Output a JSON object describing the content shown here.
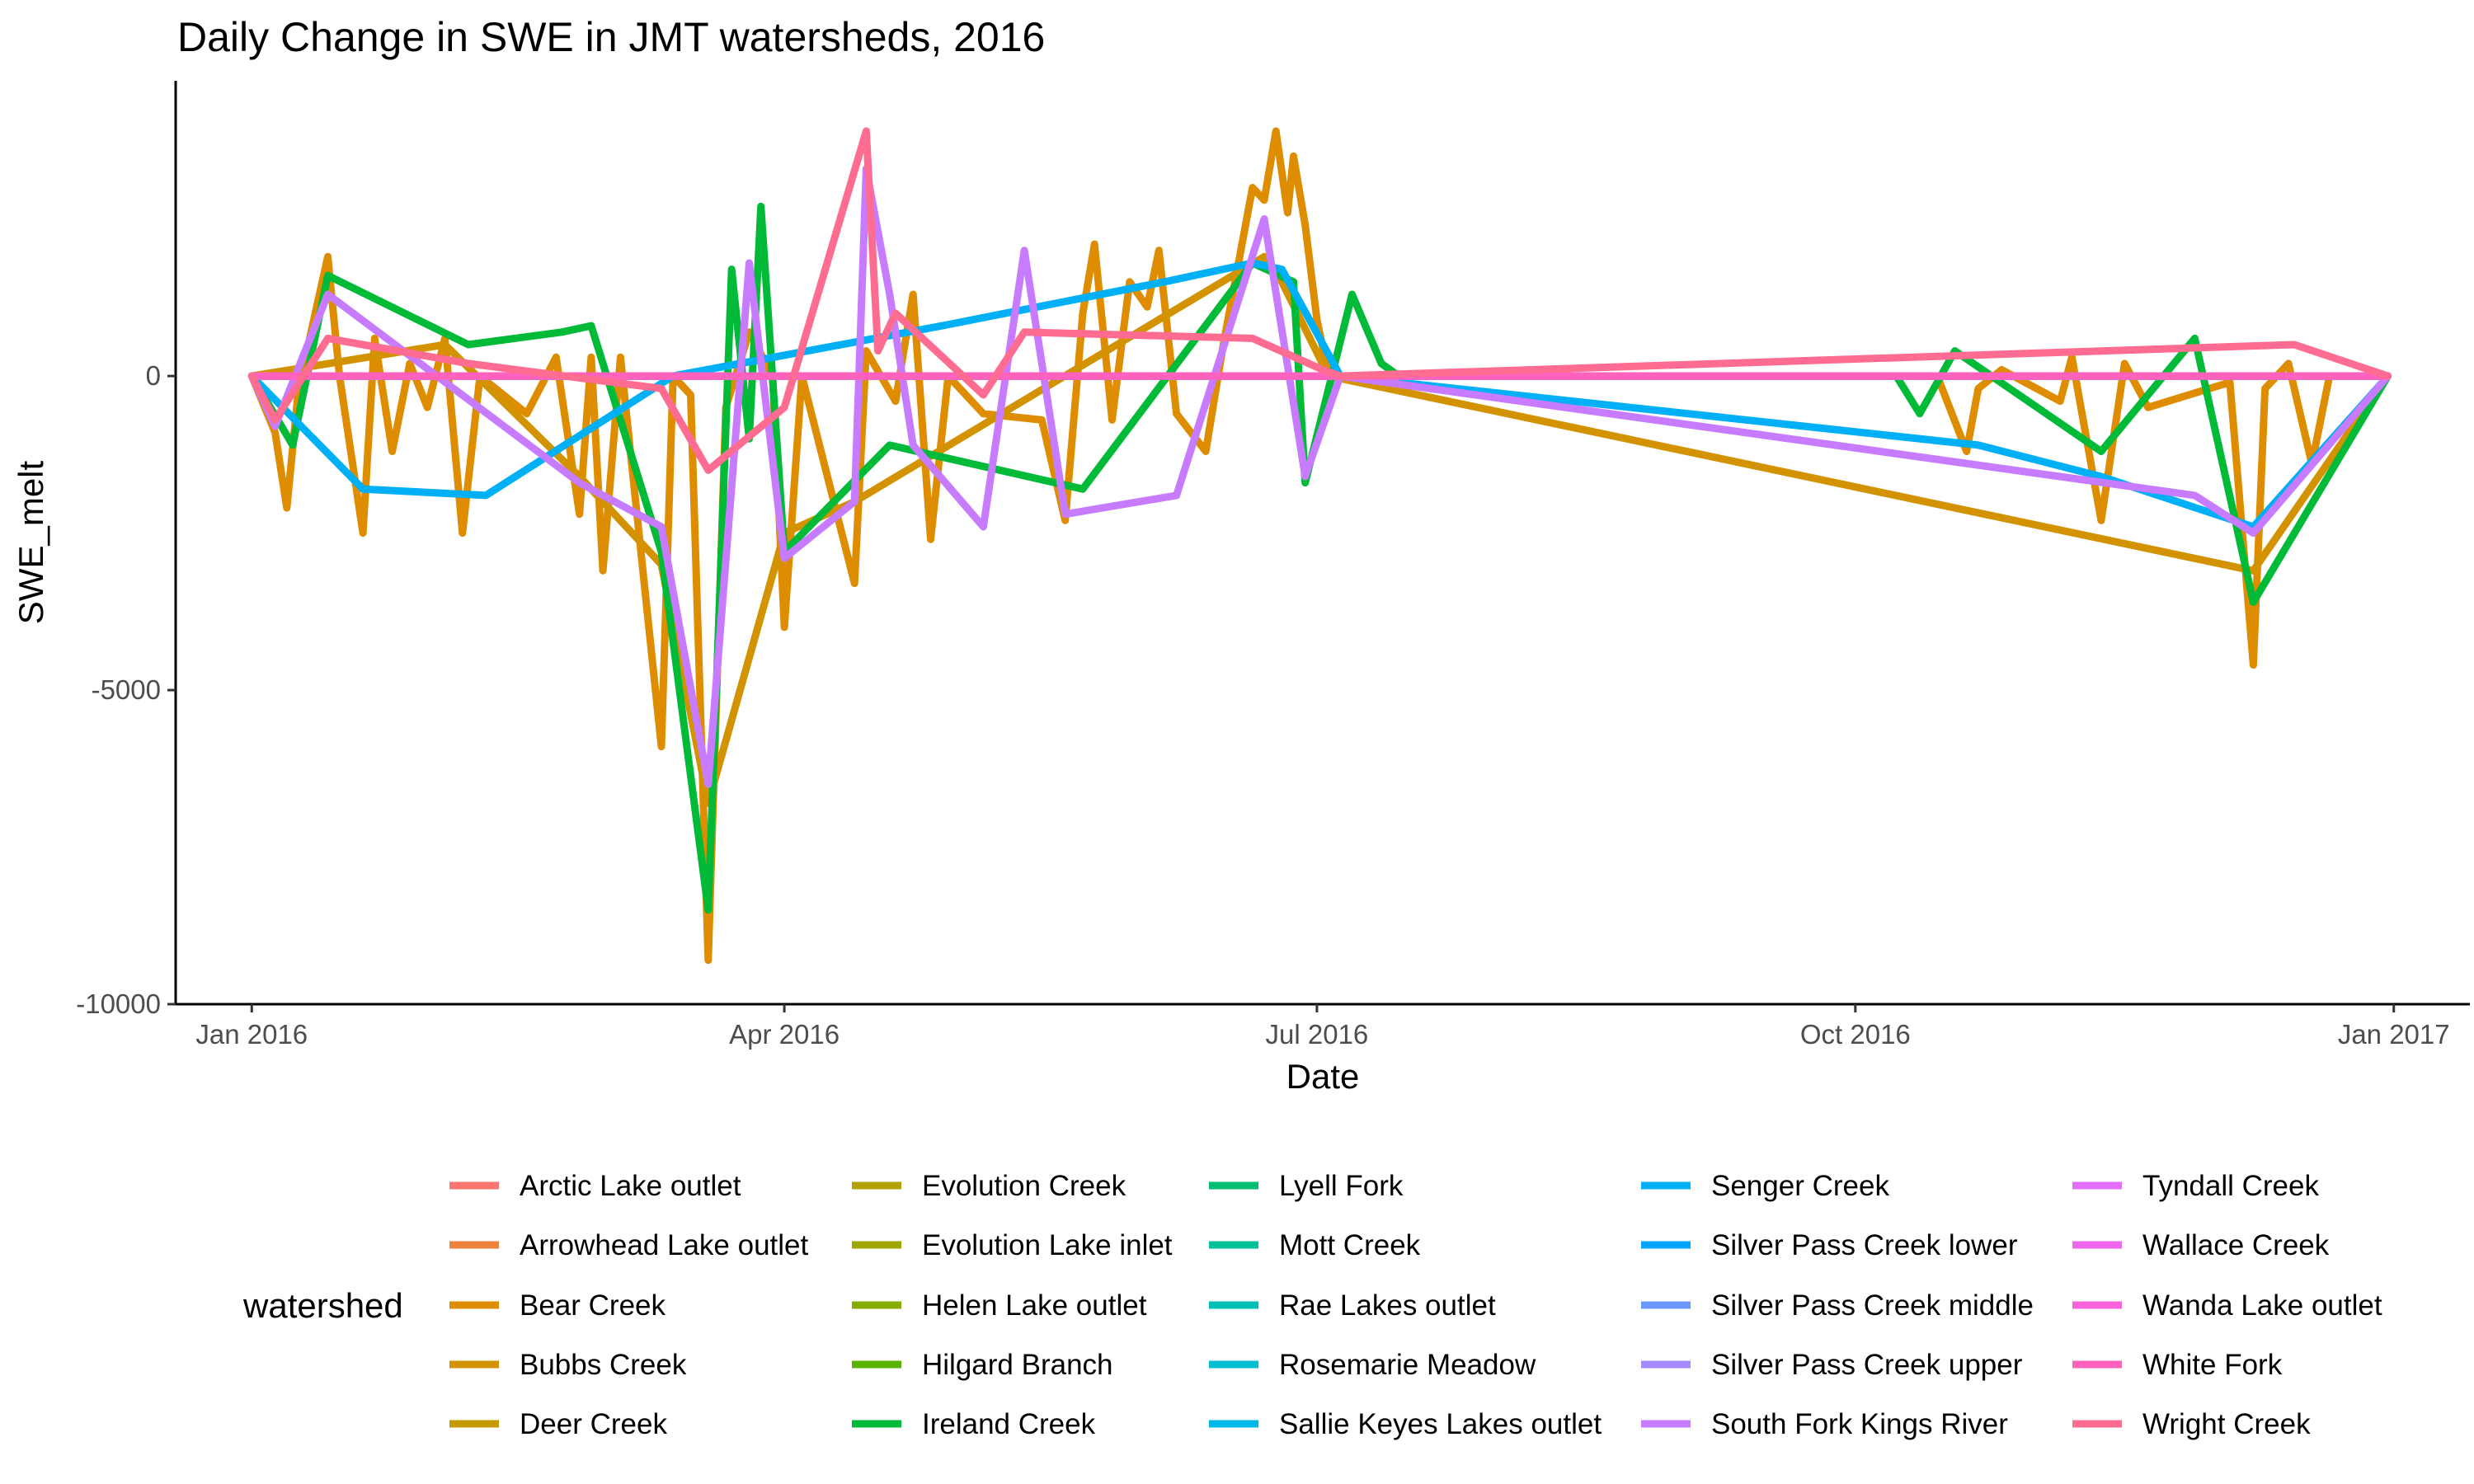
{
  "chart_data": {
    "type": "line",
    "title": "Daily Change in SWE in JMT watersheds, 2016",
    "xlabel": "Date",
    "ylabel": "SWE_melt",
    "x_ticks": [
      "Jan 2016",
      "Apr 2016",
      "Jul 2016",
      "Oct 2016",
      "Jan 2017"
    ],
    "x_tick_dates": [
      "2016-01-01",
      "2016-04-01",
      "2016-07-01",
      "2016-10-01",
      "2017-01-01"
    ],
    "xlim": [
      "2015-12-19",
      "2017-01-14"
    ],
    "ylim": [
      -10000,
      4700
    ],
    "y_ticks": [
      0,
      -5000,
      -10000
    ],
    "y_tick_labels": [
      "0",
      "-5000",
      "-10000"
    ],
    "grid": false,
    "legend_title": "watershed",
    "legend_position": "bottom",
    "series": [
      {
        "name": "Arctic Lake outlet",
        "color": "#F8766D",
        "points": [
          [
            "2016-01-01",
            0
          ],
          [
            "2016-07-05",
            0
          ],
          [
            "2016-12-31",
            0
          ]
        ]
      },
      {
        "name": "Arrowhead Lake outlet",
        "color": "#EC823C",
        "points": [
          [
            "2016-01-01",
            0
          ],
          [
            "2016-07-05",
            0
          ],
          [
            "2016-12-31",
            0
          ]
        ]
      },
      {
        "name": "Bear Creek",
        "color": "#DE8C00",
        "points": [
          [
            "2016-01-01",
            0
          ],
          [
            "2016-01-05",
            -900
          ],
          [
            "2016-01-07",
            -2100
          ],
          [
            "2016-01-09",
            -200
          ],
          [
            "2016-01-14",
            1900
          ],
          [
            "2016-01-16",
            0
          ],
          [
            "2016-01-20",
            -2500
          ],
          [
            "2016-01-22",
            600
          ],
          [
            "2016-01-25",
            -1200
          ],
          [
            "2016-01-28",
            200
          ],
          [
            "2016-01-31",
            -500
          ],
          [
            "2016-02-03",
            600
          ],
          [
            "2016-02-06",
            -2500
          ],
          [
            "2016-02-09",
            0
          ],
          [
            "2016-02-17",
            -600
          ],
          [
            "2016-02-22",
            300
          ],
          [
            "2016-02-26",
            -2200
          ],
          [
            "2016-02-28",
            300
          ],
          [
            "2016-03-01",
            -3100
          ],
          [
            "2016-03-04",
            300
          ],
          [
            "2016-03-11",
            -5900
          ],
          [
            "2016-03-13",
            0
          ],
          [
            "2016-03-16",
            -300
          ],
          [
            "2016-03-19",
            -9300
          ],
          [
            "2016-03-22",
            -500
          ],
          [
            "2016-03-26",
            700
          ],
          [
            "2016-03-30",
            0
          ],
          [
            "2016-04-01",
            -4000
          ],
          [
            "2016-04-04",
            0
          ],
          [
            "2016-04-13",
            -3300
          ],
          [
            "2016-04-15",
            400
          ],
          [
            "2016-04-20",
            -400
          ],
          [
            "2016-04-23",
            1300
          ],
          [
            "2016-04-26",
            -2600
          ],
          [
            "2016-04-29",
            0
          ],
          [
            "2016-05-05",
            -600
          ],
          [
            "2016-05-15",
            -700
          ],
          [
            "2016-05-19",
            -2300
          ],
          [
            "2016-05-22",
            1000
          ],
          [
            "2016-05-24",
            2100
          ],
          [
            "2016-05-27",
            -700
          ],
          [
            "2016-05-30",
            1500
          ],
          [
            "2016-06-02",
            1100
          ],
          [
            "2016-06-04",
            2000
          ],
          [
            "2016-06-07",
            -600
          ],
          [
            "2016-06-12",
            -1200
          ],
          [
            "2016-06-15",
            500
          ],
          [
            "2016-06-20",
            3000
          ],
          [
            "2016-06-22",
            2800
          ],
          [
            "2016-06-24",
            3900
          ],
          [
            "2016-06-26",
            2600
          ],
          [
            "2016-06-27",
            3500
          ],
          [
            "2016-06-29",
            2400
          ],
          [
            "2016-07-01",
            900
          ],
          [
            "2016-07-03",
            0
          ],
          [
            "2016-07-05",
            0
          ],
          [
            "2016-10-15",
            0
          ],
          [
            "2016-10-20",
            -1200
          ],
          [
            "2016-10-22",
            -200
          ],
          [
            "2016-10-26",
            100
          ],
          [
            "2016-11-05",
            -400
          ],
          [
            "2016-11-07",
            300
          ],
          [
            "2016-11-12",
            -2300
          ],
          [
            "2016-11-16",
            200
          ],
          [
            "2016-11-20",
            -500
          ],
          [
            "2016-12-04",
            -100
          ],
          [
            "2016-12-08",
            -4600
          ],
          [
            "2016-12-10",
            -200
          ],
          [
            "2016-12-14",
            200
          ],
          [
            "2016-12-18",
            -1400
          ],
          [
            "2016-12-21",
            0
          ],
          [
            "2016-12-31",
            0
          ]
        ]
      },
      {
        "name": "Bubbs Creek",
        "color": "#D39200",
        "points": [
          [
            "2016-01-01",
            0
          ],
          [
            "2016-02-03",
            500
          ],
          [
            "2016-02-26",
            -1600
          ],
          [
            "2016-03-11",
            -3000
          ],
          [
            "2016-03-19",
            -6800
          ],
          [
            "2016-04-01",
            -2500
          ],
          [
            "2016-04-13",
            -2000
          ],
          [
            "2016-06-22",
            1900
          ],
          [
            "2016-06-25",
            1500
          ],
          [
            "2016-07-03",
            0
          ],
          [
            "2016-12-08",
            -3100
          ],
          [
            "2016-12-31",
            0
          ]
        ]
      },
      {
        "name": "Deer Creek",
        "color": "#C49A00",
        "points": [
          [
            "2016-01-01",
            0
          ],
          [
            "2016-07-05",
            0
          ],
          [
            "2016-12-31",
            0
          ]
        ]
      },
      {
        "name": "Evolution Creek",
        "color": "#B3A000",
        "points": [
          [
            "2016-01-01",
            0
          ],
          [
            "2016-07-05",
            0
          ],
          [
            "2016-12-31",
            0
          ]
        ]
      },
      {
        "name": "Evolution Lake inlet",
        "color": "#9FA600",
        "points": [
          [
            "2016-01-01",
            0
          ],
          [
            "2016-07-05",
            0
          ],
          [
            "2016-12-31",
            0
          ]
        ]
      },
      {
        "name": "Helen Lake outlet",
        "color": "#85AD00",
        "points": [
          [
            "2016-01-01",
            0
          ],
          [
            "2016-07-05",
            0
          ],
          [
            "2016-12-31",
            0
          ]
        ]
      },
      {
        "name": "Hilgard Branch",
        "color": "#5BB300",
        "points": [
          [
            "2016-01-01",
            0
          ],
          [
            "2016-07-05",
            0
          ],
          [
            "2016-12-31",
            0
          ]
        ]
      },
      {
        "name": "Ireland Creek",
        "color": "#00BA38",
        "points": [
          [
            "2016-01-01",
            0
          ],
          [
            "2016-01-08",
            -1100
          ],
          [
            "2016-01-14",
            1600
          ],
          [
            "2016-02-07",
            500
          ],
          [
            "2016-02-23",
            700
          ],
          [
            "2016-02-28",
            800
          ],
          [
            "2016-03-11",
            -2800
          ],
          [
            "2016-03-19",
            -8500
          ],
          [
            "2016-03-23",
            1700
          ],
          [
            "2016-03-26",
            -1000
          ],
          [
            "2016-03-28",
            2700
          ],
          [
            "2016-04-01",
            -2800
          ],
          [
            "2016-04-19",
            -1100
          ],
          [
            "2016-05-22",
            -1800
          ],
          [
            "2016-06-20",
            1800
          ],
          [
            "2016-06-27",
            1500
          ],
          [
            "2016-06-29",
            -1700
          ],
          [
            "2016-07-07",
            1300
          ],
          [
            "2016-07-12",
            200
          ],
          [
            "2016-07-15",
            0
          ],
          [
            "2016-10-08",
            0
          ],
          [
            "2016-10-12",
            -600
          ],
          [
            "2016-10-18",
            400
          ],
          [
            "2016-11-12",
            -1200
          ],
          [
            "2016-11-28",
            600
          ],
          [
            "2016-12-08",
            -3600
          ],
          [
            "2016-12-31",
            0
          ]
        ]
      },
      {
        "name": "Lyell Fork",
        "color": "#00BF74",
        "points": [
          [
            "2016-01-01",
            0
          ],
          [
            "2016-07-05",
            0
          ],
          [
            "2016-12-31",
            0
          ]
        ]
      },
      {
        "name": "Mott Creek",
        "color": "#00C097",
        "points": [
          [
            "2016-01-01",
            0
          ],
          [
            "2016-07-05",
            0
          ],
          [
            "2016-12-31",
            0
          ]
        ]
      },
      {
        "name": "Rae Lakes outlet",
        "color": "#00C0B5",
        "points": [
          [
            "2016-01-01",
            0
          ],
          [
            "2016-07-05",
            0
          ],
          [
            "2016-12-31",
            0
          ]
        ]
      },
      {
        "name": "Rosemarie Meadow",
        "color": "#00BDD0",
        "points": [
          [
            "2016-01-01",
            0
          ],
          [
            "2016-07-05",
            0
          ],
          [
            "2016-12-31",
            0
          ]
        ]
      },
      {
        "name": "Sallie Keyes Lakes outlet",
        "color": "#00B8E7",
        "points": [
          [
            "2016-01-01",
            0
          ],
          [
            "2016-07-05",
            0
          ],
          [
            "2016-12-31",
            0
          ]
        ]
      },
      {
        "name": "Senger Creek",
        "color": "#00B0F6",
        "points": [
          [
            "2016-01-01",
            0
          ],
          [
            "2016-01-20",
            -1800
          ],
          [
            "2016-02-10",
            -1900
          ],
          [
            "2016-03-13",
            0
          ],
          [
            "2016-04-28",
            800
          ],
          [
            "2016-06-05",
            1500
          ],
          [
            "2016-06-20",
            1800
          ],
          [
            "2016-06-25",
            1700
          ],
          [
            "2016-07-05",
            0
          ],
          [
            "2016-10-22",
            -1100
          ],
          [
            "2016-11-12",
            -1600
          ],
          [
            "2016-12-08",
            -2400
          ],
          [
            "2016-12-31",
            0
          ]
        ]
      },
      {
        "name": "Silver Pass Creek lower",
        "color": "#00A5FF",
        "points": [
          [
            "2016-01-01",
            0
          ],
          [
            "2016-07-05",
            0
          ],
          [
            "2016-12-31",
            0
          ]
        ]
      },
      {
        "name": "Silver Pass Creek middle",
        "color": "#6E97FF",
        "points": [
          [
            "2016-01-01",
            0
          ],
          [
            "2016-07-05",
            0
          ],
          [
            "2016-12-31",
            0
          ]
        ]
      },
      {
        "name": "Silver Pass Creek upper",
        "color": "#A58AFF",
        "points": [
          [
            "2016-01-01",
            0
          ],
          [
            "2016-07-05",
            0
          ],
          [
            "2016-12-31",
            0
          ]
        ]
      },
      {
        "name": "South Fork Kings River",
        "color": "#C77CFF",
        "points": [
          [
            "2016-01-01",
            0
          ],
          [
            "2016-01-05",
            -800
          ],
          [
            "2016-01-14",
            1300
          ],
          [
            "2016-02-26",
            -1700
          ],
          [
            "2016-03-11",
            -2400
          ],
          [
            "2016-03-19",
            -6500
          ],
          [
            "2016-03-26",
            1800
          ],
          [
            "2016-04-01",
            -2900
          ],
          [
            "2016-04-13",
            -2000
          ],
          [
            "2016-04-15",
            3300
          ],
          [
            "2016-04-19",
            1300
          ],
          [
            "2016-04-23",
            -1100
          ],
          [
            "2016-05-05",
            -2400
          ],
          [
            "2016-05-12",
            2000
          ],
          [
            "2016-05-19",
            -2200
          ],
          [
            "2016-06-07",
            -1900
          ],
          [
            "2016-06-22",
            2500
          ],
          [
            "2016-06-29",
            -1600
          ],
          [
            "2016-07-05",
            0
          ],
          [
            "2016-11-28",
            -1900
          ],
          [
            "2016-12-08",
            -2500
          ],
          [
            "2016-12-31",
            0
          ]
        ]
      },
      {
        "name": "Tyndall Creek",
        "color": "#E16FF8",
        "points": [
          [
            "2016-01-01",
            0
          ],
          [
            "2016-07-05",
            0
          ],
          [
            "2016-12-31",
            0
          ]
        ]
      },
      {
        "name": "Wallace Creek",
        "color": "#F066EA",
        "points": [
          [
            "2016-01-01",
            0
          ],
          [
            "2016-07-05",
            0
          ],
          [
            "2016-12-31",
            0
          ]
        ]
      },
      {
        "name": "Wanda Lake outlet",
        "color": "#FA62DB",
        "points": [
          [
            "2016-01-01",
            0
          ],
          [
            "2016-07-05",
            0
          ],
          [
            "2016-12-31",
            0
          ]
        ]
      },
      {
        "name": "White Fork",
        "color": "#FF62BC",
        "points": [
          [
            "2016-01-01",
            0
          ],
          [
            "2016-07-05",
            0
          ],
          [
            "2016-12-31",
            0
          ]
        ]
      },
      {
        "name": "Wright Creek",
        "color": "#FF6C91",
        "points": [
          [
            "2016-01-01",
            0
          ],
          [
            "2016-01-05",
            -700
          ],
          [
            "2016-01-14",
            600
          ],
          [
            "2016-02-07",
            200
          ],
          [
            "2016-03-11",
            -200
          ],
          [
            "2016-03-19",
            -1500
          ],
          [
            "2016-04-01",
            -500
          ],
          [
            "2016-04-15",
            3900
          ],
          [
            "2016-04-17",
            400
          ],
          [
            "2016-04-20",
            1000
          ],
          [
            "2016-05-05",
            -300
          ],
          [
            "2016-05-12",
            700
          ],
          [
            "2016-06-20",
            600
          ],
          [
            "2016-07-02",
            100
          ],
          [
            "2016-07-05",
            0
          ],
          [
            "2016-12-15",
            500
          ],
          [
            "2016-12-31",
            0
          ]
        ]
      }
    ]
  }
}
